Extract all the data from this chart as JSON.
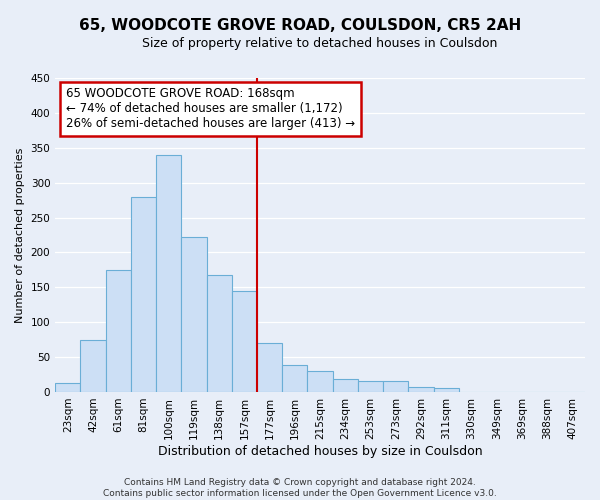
{
  "title": "65, WOODCOTE GROVE ROAD, COULSDON, CR5 2AH",
  "subtitle": "Size of property relative to detached houses in Coulsdon",
  "xlabel": "Distribution of detached houses by size in Coulsdon",
  "ylabel": "Number of detached properties",
  "bar_labels": [
    "23sqm",
    "42sqm",
    "61sqm",
    "81sqm",
    "100sqm",
    "119sqm",
    "138sqm",
    "157sqm",
    "177sqm",
    "196sqm",
    "215sqm",
    "234sqm",
    "253sqm",
    "273sqm",
    "292sqm",
    "311sqm",
    "330sqm",
    "349sqm",
    "369sqm",
    "388sqm",
    "407sqm"
  ],
  "bar_heights": [
    13,
    75,
    175,
    280,
    340,
    222,
    168,
    145,
    70,
    38,
    30,
    18,
    15,
    15,
    7,
    5,
    0,
    0,
    0,
    0,
    0
  ],
  "bar_color": "#ccdff5",
  "bar_edge_color": "#6aaed6",
  "vline_x_idx": 8,
  "vline_color": "#cc0000",
  "ylim": [
    0,
    450
  ],
  "yticks": [
    0,
    50,
    100,
    150,
    200,
    250,
    300,
    350,
    400,
    450
  ],
  "annotation_title": "65 WOODCOTE GROVE ROAD: 168sqm",
  "annotation_line1": "← 74% of detached houses are smaller (1,172)",
  "annotation_line2": "26% of semi-detached houses are larger (413) →",
  "annotation_box_facecolor": "#ffffff",
  "annotation_box_edgecolor": "#cc0000",
  "footer_line1": "Contains HM Land Registry data © Crown copyright and database right 2024.",
  "footer_line2": "Contains public sector information licensed under the Open Government Licence v3.0.",
  "background_color": "#e8eef8",
  "plot_bg_color": "#e8eef8",
  "grid_color": "#ffffff",
  "title_fontsize": 11,
  "subtitle_fontsize": 9,
  "ylabel_fontsize": 8,
  "xlabel_fontsize": 9,
  "tick_fontsize": 7.5,
  "footer_fontsize": 6.5
}
